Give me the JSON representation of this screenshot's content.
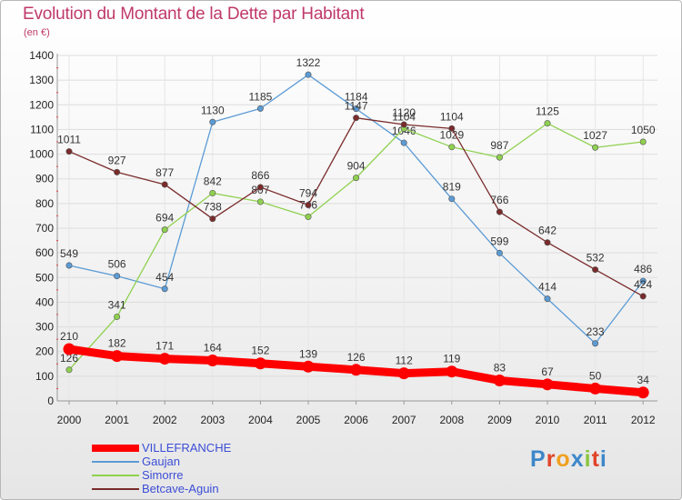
{
  "header": {
    "title": "Evolution du Montant de la Dette par Habitant",
    "subtitle": "(en €)"
  },
  "logo": {
    "text": "Proxiti",
    "letter_colors": [
      "#3d87c9",
      "#e0442a",
      "#f0a020",
      "#3d87c9",
      "#8bc53f",
      "#e0442a",
      "#3d87c9"
    ]
  },
  "chart_data": {
    "type": "line",
    "title": "Evolution du Montant de la Dette par Habitant",
    "subtitle": "(en €)",
    "x": [
      "2000",
      "2001",
      "2002",
      "2003",
      "2004",
      "2005",
      "2006",
      "2007",
      "2008",
      "2009",
      "2010",
      "2011",
      "2012"
    ],
    "ylim": [
      0,
      1400
    ],
    "yticks": [
      0,
      100,
      200,
      300,
      400,
      500,
      600,
      700,
      800,
      900,
      1000,
      1100,
      1200,
      1300,
      1400
    ],
    "grid": true,
    "legend_position": "bottom-left",
    "series": [
      {
        "name": "VILLEFRANCHE",
        "color": "#ff0000",
        "style": "thick",
        "values": [
          210,
          182,
          171,
          164,
          152,
          139,
          126,
          112,
          119,
          83,
          67,
          50,
          34
        ],
        "labels": [
          "210",
          "182",
          "171",
          "164",
          "152",
          "139",
          "126",
          "112",
          "119",
          "83",
          "67",
          "50",
          "34"
        ]
      },
      {
        "name": "Gaujan",
        "color": "#5b9bd5",
        "style": "thin",
        "values": [
          549,
          506,
          454,
          1130,
          1185,
          1322,
          1184,
          1046,
          819,
          599,
          414,
          233,
          486
        ],
        "labels": [
          "549",
          "506",
          "454",
          "1130",
          "1185",
          "1322",
          "1184",
          "1046",
          "819",
          "599",
          "414",
          "233",
          "486"
        ]
      },
      {
        "name": "Simorre",
        "color": "#8fd14f",
        "style": "thin",
        "values": [
          126,
          341,
          694,
          842,
          807,
          746,
          904,
          1104,
          1029,
          987,
          1125,
          1027,
          1050
        ],
        "labels": [
          "126",
          "341",
          "694",
          "842",
          "807",
          "746",
          "904",
          "1104",
          "1029",
          "987",
          "1125",
          "1027",
          "1050"
        ]
      },
      {
        "name": "Betcave-Aguin",
        "color": "#7a2b2b",
        "style": "thin",
        "values": [
          1011,
          927,
          877,
          738,
          866,
          794,
          1147,
          1120,
          1104,
          766,
          642,
          532,
          424
        ],
        "labels": [
          "1011",
          "927",
          "877",
          "738",
          "866",
          "794",
          "1147",
          "1120",
          "1104",
          "766",
          "642",
          "532",
          "424"
        ]
      }
    ]
  }
}
